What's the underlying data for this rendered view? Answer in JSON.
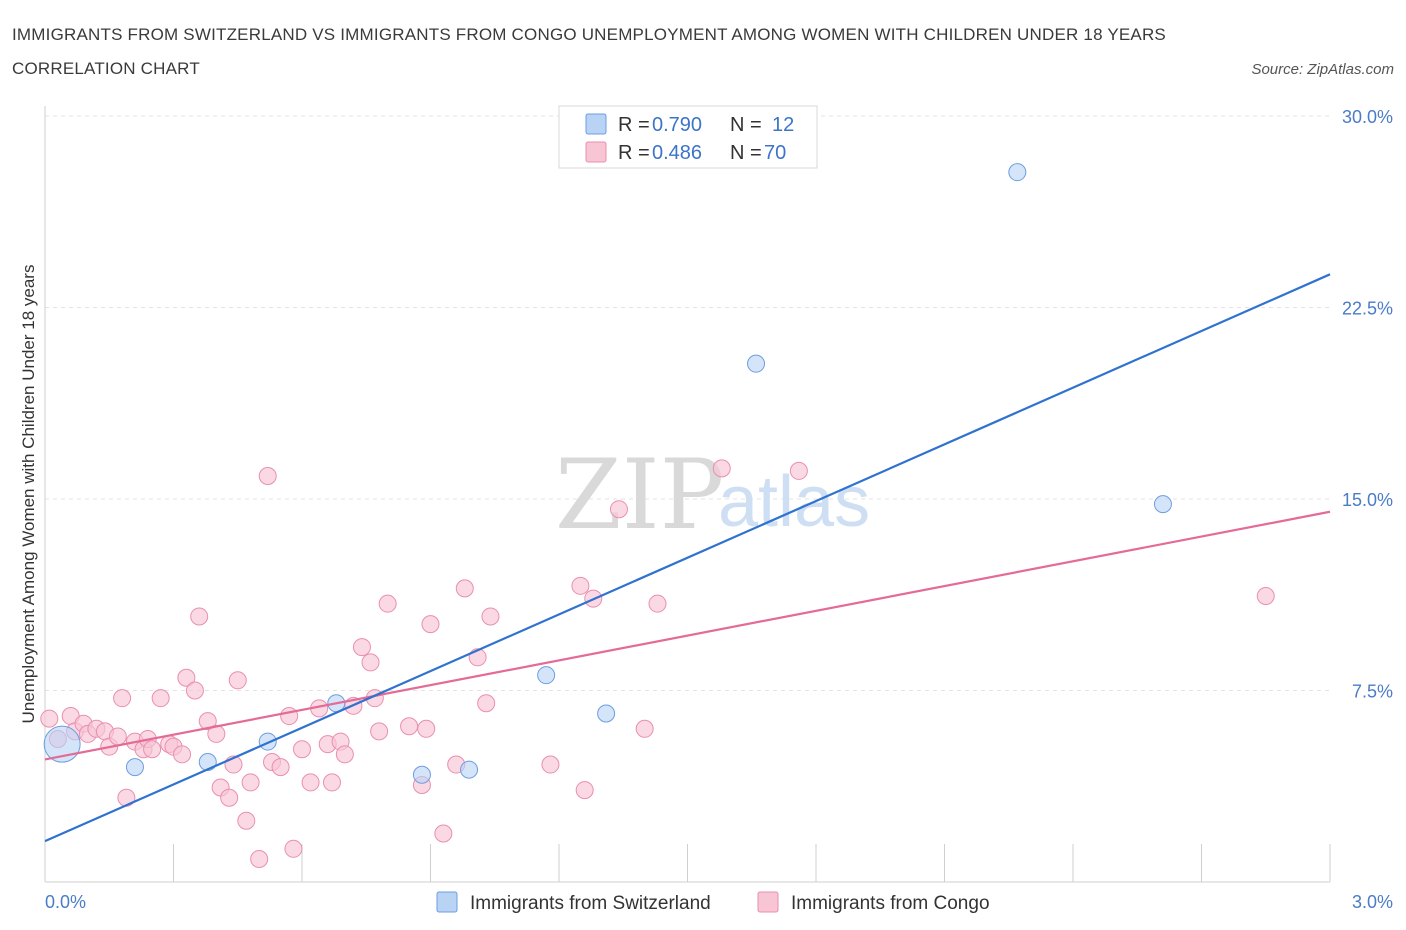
{
  "header": {
    "title": "IMMIGRANTS FROM SWITZERLAND VS IMMIGRANTS FROM CONGO UNEMPLOYMENT AMONG WOMEN WITH CHILDREN UNDER 18 YEARS CORRELATION CHART",
    "source": "Source: ZipAtlas.com"
  },
  "watermark": {
    "zip": "ZIP",
    "atlas": "atlas"
  },
  "legend": {
    "r_label": "R = ",
    "n_label": "N = ",
    "series": [
      {
        "r": "0.790",
        "n": "12"
      },
      {
        "r": "0.486",
        "n": "70"
      }
    ]
  },
  "colors": {
    "switzerland_fill": "#b9d3f5",
    "switzerland_stroke": "#6d9de0",
    "switzerland_line": "#2f72cf",
    "congo_fill": "#f8c5d5",
    "congo_stroke": "#ea8fae",
    "congo_line": "#e46a97",
    "grid": "#e3e3e3",
    "tick_label": "#4a7cc7"
  },
  "chart_data": {
    "type": "scatter",
    "title": "IMMIGRANTS FROM SWITZERLAND VS IMMIGRANTS FROM CONGO UNEMPLOYMENT AMONG WOMEN WITH CHILDREN UNDER 18 YEARS CORRELATION CHART",
    "ylabel": "Unemployment Among Women with Children Under 18 years",
    "xlabel": "",
    "xlim": [
      0,
      3.0
    ],
    "ylim": [
      0,
      30.0
    ],
    "x_tick_labels": [
      "0.0%",
      "3.0%"
    ],
    "y_ticks": [
      7.5,
      15.0,
      22.5,
      30.0
    ],
    "y_tick_labels": [
      "7.5%",
      "15.0%",
      "22.5%",
      "30.0%"
    ],
    "grid": true,
    "legend_placement": "top-center",
    "series": [
      {
        "name": "Immigrants from Switzerland",
        "r": 0.79,
        "n": 12,
        "trend": {
          "x": [
            0.0,
            3.0
          ],
          "y": [
            1.6,
            23.8
          ]
        },
        "points": [
          {
            "x": 0.04,
            "y": 5.4,
            "big": true
          },
          {
            "x": 0.21,
            "y": 4.5
          },
          {
            "x": 0.38,
            "y": 4.7
          },
          {
            "x": 0.52,
            "y": 5.5
          },
          {
            "x": 0.68,
            "y": 7.0
          },
          {
            "x": 0.88,
            "y": 4.2
          },
          {
            "x": 0.99,
            "y": 4.4
          },
          {
            "x": 1.17,
            "y": 8.1
          },
          {
            "x": 1.31,
            "y": 6.6
          },
          {
            "x": 1.66,
            "y": 20.3
          },
          {
            "x": 2.27,
            "y": 27.8
          },
          {
            "x": 2.61,
            "y": 14.8
          }
        ]
      },
      {
        "name": "Immigrants from Congo",
        "r": 0.486,
        "n": 70,
        "trend": {
          "x": [
            0.0,
            3.0
          ],
          "y": [
            4.8,
            14.5
          ]
        },
        "points": [
          {
            "x": 0.01,
            "y": 6.4
          },
          {
            "x": 0.03,
            "y": 5.6
          },
          {
            "x": 0.06,
            "y": 6.5
          },
          {
            "x": 0.07,
            "y": 5.9
          },
          {
            "x": 0.09,
            "y": 6.2
          },
          {
            "x": 0.1,
            "y": 5.8
          },
          {
            "x": 0.12,
            "y": 6.0
          },
          {
            "x": 0.14,
            "y": 5.9
          },
          {
            "x": 0.15,
            "y": 5.3
          },
          {
            "x": 0.17,
            "y": 5.7
          },
          {
            "x": 0.18,
            "y": 7.2
          },
          {
            "x": 0.19,
            "y": 3.3
          },
          {
            "x": 0.21,
            "y": 5.5
          },
          {
            "x": 0.23,
            "y": 5.2
          },
          {
            "x": 0.24,
            "y": 5.6
          },
          {
            "x": 0.25,
            "y": 5.2
          },
          {
            "x": 0.27,
            "y": 7.2
          },
          {
            "x": 0.29,
            "y": 5.4
          },
          {
            "x": 0.3,
            "y": 5.3
          },
          {
            "x": 0.32,
            "y": 5.0
          },
          {
            "x": 0.33,
            "y": 8.0
          },
          {
            "x": 0.35,
            "y": 7.5
          },
          {
            "x": 0.36,
            "y": 10.4
          },
          {
            "x": 0.38,
            "y": 6.3
          },
          {
            "x": 0.4,
            "y": 5.8
          },
          {
            "x": 0.41,
            "y": 3.7
          },
          {
            "x": 0.43,
            "y": 3.3
          },
          {
            "x": 0.44,
            "y": 4.6
          },
          {
            "x": 0.45,
            "y": 7.9
          },
          {
            "x": 0.47,
            "y": 2.4
          },
          {
            "x": 0.48,
            "y": 3.9
          },
          {
            "x": 0.5,
            "y": 0.9
          },
          {
            "x": 0.52,
            "y": 15.9
          },
          {
            "x": 0.53,
            "y": 4.7
          },
          {
            "x": 0.55,
            "y": 4.5
          },
          {
            "x": 0.57,
            "y": 6.5
          },
          {
            "x": 0.58,
            "y": 1.3
          },
          {
            "x": 0.6,
            "y": 5.2
          },
          {
            "x": 0.62,
            "y": 3.9
          },
          {
            "x": 0.64,
            "y": 6.8
          },
          {
            "x": 0.66,
            "y": 5.4
          },
          {
            "x": 0.67,
            "y": 3.9
          },
          {
            "x": 0.69,
            "y": 5.5
          },
          {
            "x": 0.7,
            "y": 5.0
          },
          {
            "x": 0.74,
            "y": 9.2
          },
          {
            "x": 0.76,
            "y": 8.6
          },
          {
            "x": 0.77,
            "y": 7.2
          },
          {
            "x": 0.78,
            "y": 5.9
          },
          {
            "x": 0.8,
            "y": 10.9
          },
          {
            "x": 0.85,
            "y": 6.1
          },
          {
            "x": 0.88,
            "y": 3.8
          },
          {
            "x": 0.89,
            "y": 6.0
          },
          {
            "x": 0.9,
            "y": 10.1
          },
          {
            "x": 0.93,
            "y": 1.9
          },
          {
            "x": 0.96,
            "y": 4.6
          },
          {
            "x": 0.98,
            "y": 11.5
          },
          {
            "x": 1.01,
            "y": 8.8
          },
          {
            "x": 1.03,
            "y": 7.0
          },
          {
            "x": 1.04,
            "y": 10.4
          },
          {
            "x": 1.18,
            "y": 4.6
          },
          {
            "x": 1.25,
            "y": 11.6
          },
          {
            "x": 1.26,
            "y": 3.6
          },
          {
            "x": 1.28,
            "y": 11.1
          },
          {
            "x": 1.34,
            "y": 14.6
          },
          {
            "x": 1.4,
            "y": 6.0
          },
          {
            "x": 1.43,
            "y": 10.9
          },
          {
            "x": 1.58,
            "y": 16.2
          },
          {
            "x": 1.76,
            "y": 16.1
          },
          {
            "x": 2.85,
            "y": 11.2
          },
          {
            "x": 0.72,
            "y": 6.9
          }
        ]
      }
    ]
  }
}
